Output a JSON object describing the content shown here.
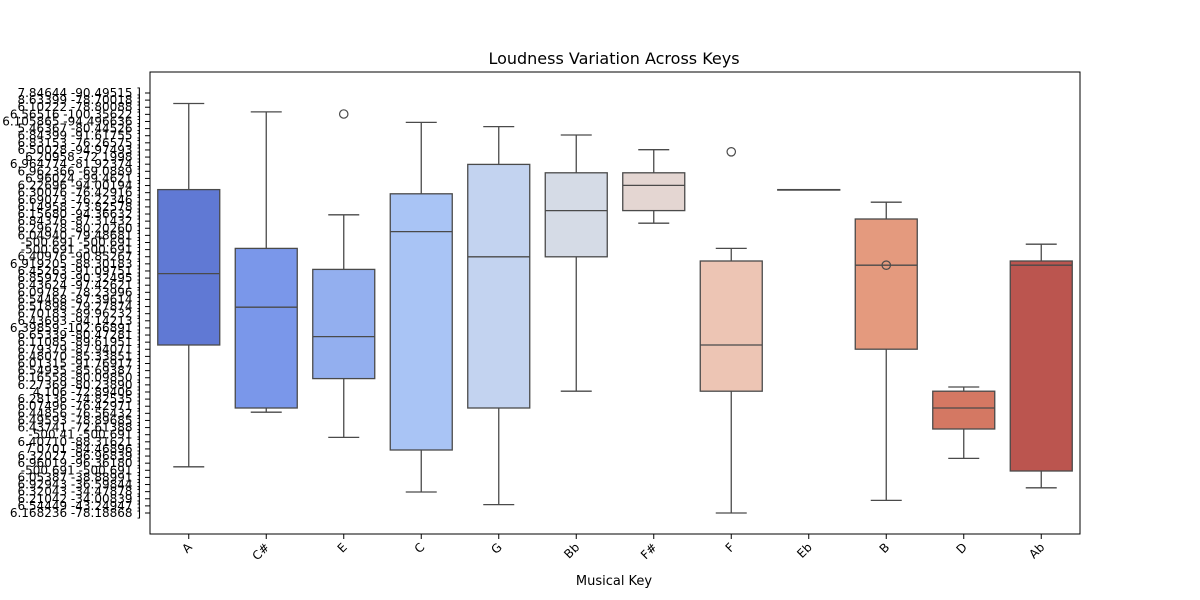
{
  "chart_data": {
    "type": "box",
    "title": "Loudness Variation Across Keys",
    "xlabel": "Musical Key",
    "ylabel": "",
    "categories": [
      "A",
      "C#",
      "E",
      "C",
      "G",
      "Bb",
      "F#",
      "F",
      "Eb",
      "B",
      "D",
      "Ab"
    ],
    "colors": [
      "#6079d4",
      "#7a97ea",
      "#93afef",
      "#a9c4f5",
      "#c3d3f0",
      "#d5dbe6",
      "#e4d6d2",
      "#edc5b4",
      "#f0b89d",
      "#e49a7e",
      "#d47863",
      "#bb554f"
    ],
    "ylim": [
      0,
      1
    ],
    "boxes": [
      {
        "min": 0.11,
        "q1": 0.4,
        "median": 0.57,
        "q3": 0.77,
        "max": 0.975,
        "outliers": []
      },
      {
        "min": 0.24,
        "q1": 0.25,
        "median": 0.49,
        "q3": 0.63,
        "max": 0.955,
        "outliers": []
      },
      {
        "min": 0.18,
        "q1": 0.32,
        "median": 0.42,
        "q3": 0.58,
        "max": 0.71,
        "outliers": [
          0.95
        ]
      },
      {
        "min": 0.05,
        "q1": 0.15,
        "median": 0.67,
        "q3": 0.76,
        "max": 0.93,
        "outliers": []
      },
      {
        "min": 0.02,
        "q1": 0.25,
        "median": 0.61,
        "q3": 0.83,
        "max": 0.92,
        "outliers": []
      },
      {
        "min": 0.29,
        "q1": 0.61,
        "median": 0.72,
        "q3": 0.81,
        "max": 0.9,
        "outliers": []
      },
      {
        "min": 0.69,
        "q1": 0.72,
        "median": 0.78,
        "q3": 0.81,
        "max": 0.865,
        "outliers": []
      },
      {
        "min": 0.0,
        "q1": 0.29,
        "median": 0.4,
        "q3": 0.6,
        "max": 0.63,
        "outliers": [
          0.86
        ]
      },
      {
        "min": 0.77,
        "q1": 0.77,
        "median": 0.77,
        "q3": 0.77,
        "max": 0.77,
        "outliers": []
      },
      {
        "min": 0.03,
        "q1": 0.39,
        "median": 0.59,
        "q3": 0.7,
        "max": 0.74,
        "outliers": [
          0.59
        ]
      },
      {
        "min": 0.13,
        "q1": 0.2,
        "median": 0.25,
        "q3": 0.29,
        "max": 0.3,
        "outliers": []
      },
      {
        "min": 0.06,
        "q1": 0.1,
        "median": 0.59,
        "q3": 0.6,
        "max": 0.64,
        "outliers": []
      }
    ],
    "ytick_labels": [
      "7.84644 -90.49515 ]",
      "8.63399 -78.70018 ]",
      "6.10222 -78.80088 ]",
      "6.56516 -100.35622 ]",
      "6.105865 -94.496636 ]",
      "5.46367 -80.44526 ]",
      "6.84399 -91.61755 ]",
      "6.83153 -76.26575 ]",
      "6.50028 -94.97493 ]",
      "6.20958 -72.1998 ]",
      "6.964774 -81.92374 ]",
      "6.962366 -69.0889 ]",
      "6.96024 -99.4621 ]",
      "6.22696 -94.00194 ]",
      "6.30076 -76.42916 ]",
      "6.69073 -76.22346 ]",
      "6.14958 -73.82578 ]",
      "6.15680 -94.36632 ]",
      "6.84376 -87.31432 ]",
      "6.29678 -80.20260 ]",
      "6.04940 -79.48681 ]",
      "-500.691 -500.691 ]",
      "-500.691 -500.691 ]",
      "6.40976 -90.85267 ]",
      "6.919205 -88.30183 ]",
      "6.45263 -91.09751 ]",
      "6.85979 -90.32495 ]",
      "6.43624 -97.42621 ]",
      "6.09787 -78.23996 ]",
      "6.54468 -87.39614 ]",
      "6.51898 -79.27874 ]",
      "6.70183 -89.96232 ]",
      "6.43693 -94.14213 ]",
      "6.39859 -102.66891 ]",
      "6.65339 -80.47281 ]",
      "6.11085 -89.61951 ]",
      "6.79379 -87.94071 ]",
      "6.48070 -85.33851 ]",
      "6.01315 -91.76917 ]",
      "6.54935 -85.69387 ]",
      "6.16558 -80.09850 ]",
      "6.27369 -80.23890 ]",
      "4.106 -72.89406 ]",
      "6.28136 -74.82535 ]",
      "6.07496 -76.42971 ]",
      "6.44856 -76.56432 ]",
      "6.49593 -78.89685 ]",
      "6.43741 -72.61388 ]",
      "-500.41 -500.691 ]",
      "6.40710 -88.31621 ]",
      "7.0701 -84.46896 ]",
      "6.32027 -96.96839 ]",
      "6.96019 -96.36180 ]",
      "-500.691 -500.691 ]",
      "6.05387 -38.88991 ]",
      "6.92943 -36.59844 ]",
      "6.32043 -34.47878 ]",
      "6.21042 -34.00839 ]",
      "6.54449 -43.24947 ]",
      "6.168236 -78.18868 ]"
    ]
  }
}
